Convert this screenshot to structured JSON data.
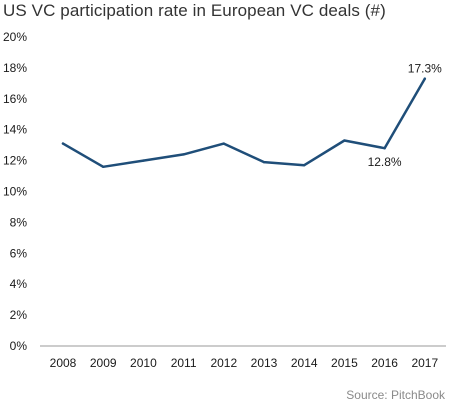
{
  "chart_data": {
    "type": "line",
    "title": "US VC participation rate in European VC deals (#)",
    "source": "Source: PitchBook",
    "xlabel": "",
    "ylabel": "",
    "categories": [
      "2008",
      "2009",
      "2010",
      "2011",
      "2012",
      "2013",
      "2014",
      "2015",
      "2016",
      "2017"
    ],
    "series": [
      {
        "values": [
          13.1,
          11.6,
          12.0,
          12.4,
          13.1,
          11.9,
          11.7,
          13.3,
          12.8,
          17.3
        ]
      }
    ],
    "ylim": [
      0,
      20
    ],
    "y_ticks": [
      "0%",
      "2%",
      "4%",
      "6%",
      "8%",
      "10%",
      "12%",
      "14%",
      "16%",
      "18%",
      "20%"
    ],
    "annotations": [
      {
        "category": "2016",
        "text": "12.8%"
      },
      {
        "category": "2017",
        "text": "17.3%"
      }
    ],
    "grid": false,
    "legend": "none",
    "colors": {
      "line": "#1f4e79",
      "axis": "#999999"
    }
  }
}
